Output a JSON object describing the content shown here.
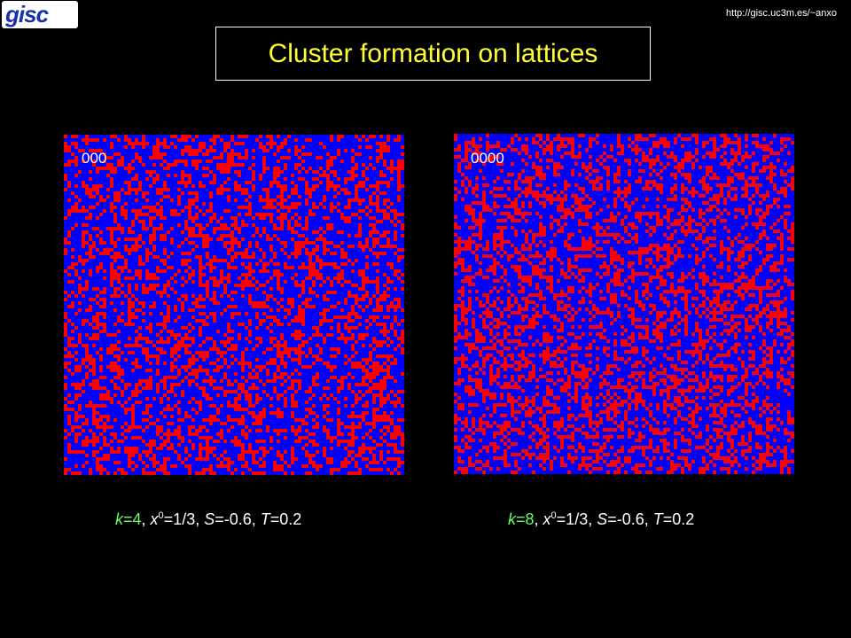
{
  "logo": {
    "text": "gisc"
  },
  "header": {
    "url": "http://gisc.uc3m.es/~anxo",
    "title": "Cluster formation on lattices"
  },
  "panels": [
    {
      "label": "000",
      "caption": [
        "k",
        "=4",
        ", ",
        "x",
        "0",
        "=1/3, ",
        "S",
        "=-0.6, ",
        "T",
        "=0.2"
      ]
    },
    {
      "label": "0000",
      "caption": [
        "k",
        "=8",
        ", ",
        "x",
        "0",
        "=1/3, ",
        "S",
        "=-0.6, ",
        "T",
        "=0.2"
      ]
    }
  ]
}
